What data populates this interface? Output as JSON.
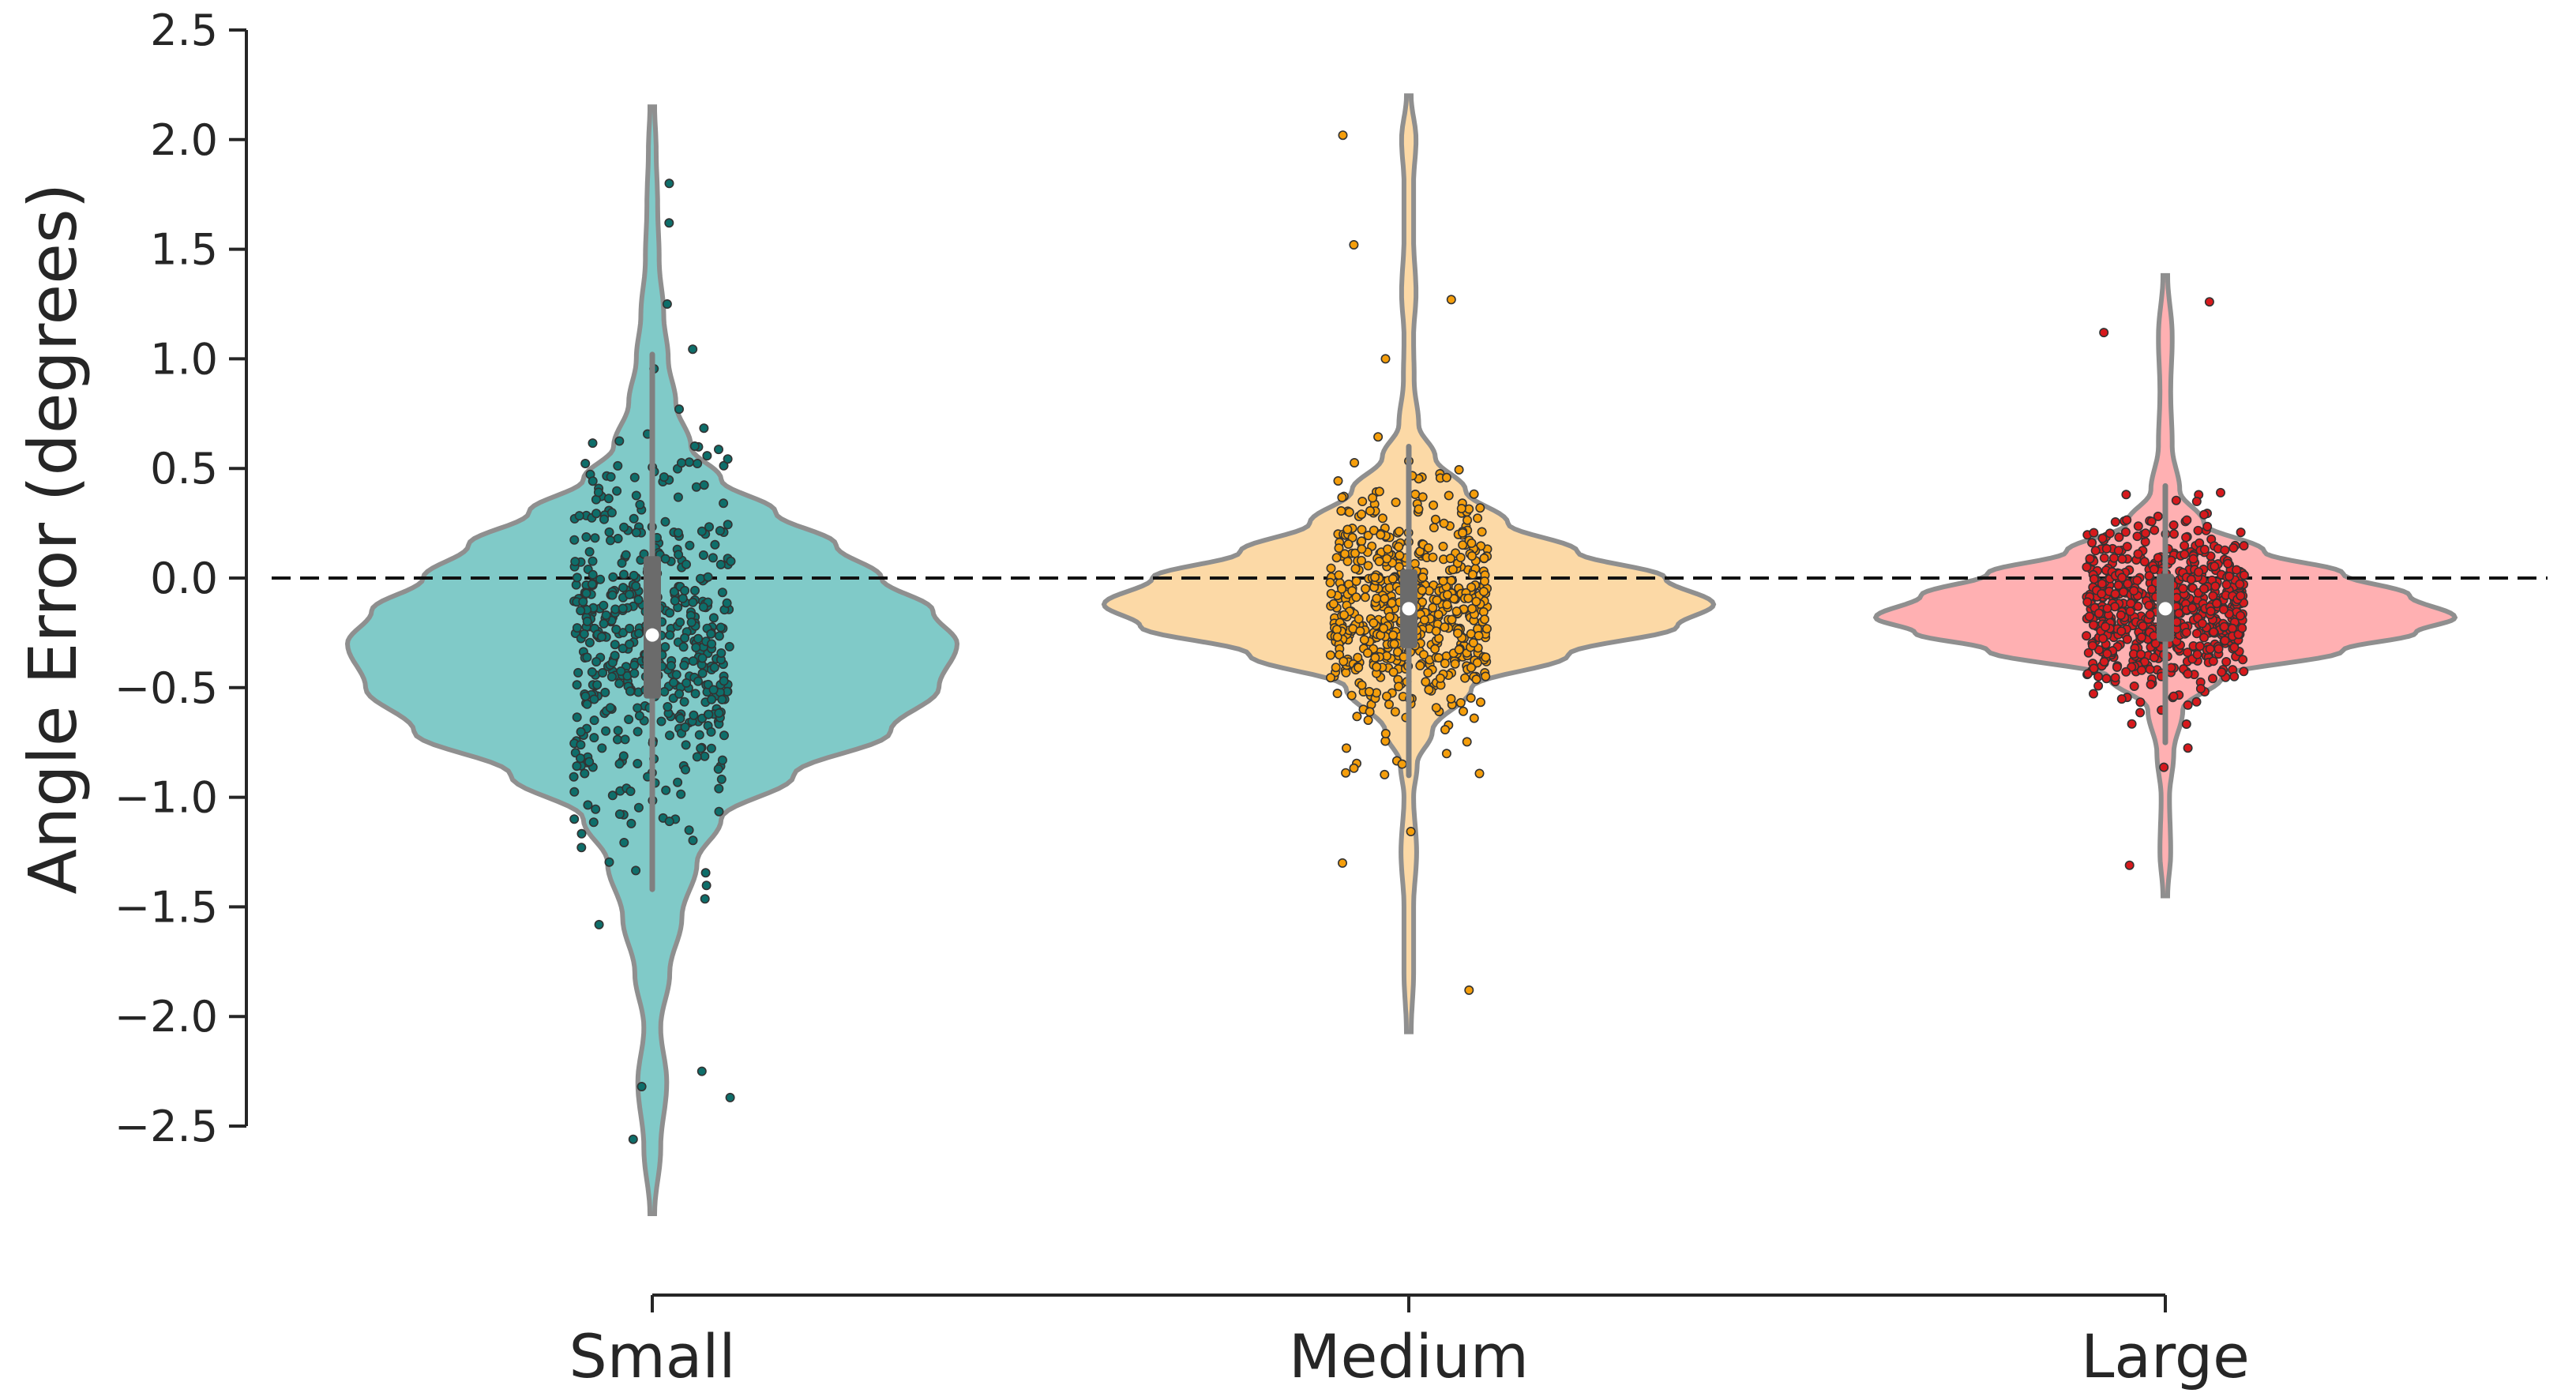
{
  "chart_data": {
    "type": "violin",
    "title": "",
    "xlabel": "",
    "ylabel": "Angle Error (degrees)",
    "ylim": [
      -2.5,
      2.5
    ],
    "yticks": [
      "2.5",
      "2.0",
      "1.5",
      "1.0",
      "0.5",
      "0.0",
      "−0.5",
      "−1.0",
      "−1.5",
      "−2.0",
      "−2.5"
    ],
    "ytick_values": [
      2.5,
      2.0,
      1.5,
      1.0,
      0.5,
      0.0,
      -0.5,
      -1.0,
      -1.5,
      -2.0,
      -2.5
    ],
    "reference_line": {
      "y": 0.0,
      "style": "dashed",
      "color": "#111111"
    },
    "categories": [
      "Small",
      "Medium",
      "Large"
    ],
    "series": [
      {
        "name": "Small",
        "fill": "#80CAC8",
        "point_color": "#0E6E6A",
        "median": -0.26,
        "q1": -0.55,
        "q3": 0.1,
        "whisker_low": -1.42,
        "whisker_high": 1.02,
        "min": -2.9,
        "max": 2.15,
        "n_points": 520,
        "point_sd": 0.42,
        "jitter": 0.2,
        "density_profile": [
          [
            -2.9,
            0.0
          ],
          [
            -2.6,
            0.02
          ],
          [
            -2.3,
            0.04
          ],
          [
            -2.05,
            0.02
          ],
          [
            -1.8,
            0.05
          ],
          [
            -1.55,
            0.09
          ],
          [
            -1.3,
            0.14
          ],
          [
            -1.1,
            0.22
          ],
          [
            -0.9,
            0.46
          ],
          [
            -0.7,
            0.78
          ],
          [
            -0.5,
            0.94
          ],
          [
            -0.3,
            1.0
          ],
          [
            -0.15,
            0.92
          ],
          [
            0.0,
            0.75
          ],
          [
            0.15,
            0.6
          ],
          [
            0.3,
            0.4
          ],
          [
            0.45,
            0.22
          ],
          [
            0.6,
            0.12
          ],
          [
            0.8,
            0.07
          ],
          [
            1.0,
            0.045
          ],
          [
            1.2,
            0.03
          ],
          [
            1.45,
            0.015
          ],
          [
            1.7,
            0.01
          ],
          [
            1.95,
            0.005
          ],
          [
            2.15,
            0.0
          ]
        ],
        "outliers": [
          -2.25,
          -2.37,
          -2.32,
          -2.56,
          1.8,
          1.62,
          1.25
        ]
      },
      {
        "name": "Medium",
        "fill": "#FCD9A6",
        "point_color": "#F59E0B",
        "median": -0.14,
        "q1": -0.32,
        "q3": 0.04,
        "whisker_low": -0.9,
        "whisker_high": 0.6,
        "min": -2.07,
        "max": 2.2,
        "n_points": 620,
        "point_sd": 0.26,
        "jitter": 0.2,
        "density_profile": [
          [
            -2.07,
            0.0
          ],
          [
            -1.8,
            0.008
          ],
          [
            -1.5,
            0.008
          ],
          [
            -1.25,
            0.018
          ],
          [
            -1.0,
            0.008
          ],
          [
            -0.85,
            0.02
          ],
          [
            -0.7,
            0.07
          ],
          [
            -0.5,
            0.2
          ],
          [
            -0.35,
            0.52
          ],
          [
            -0.22,
            0.88
          ],
          [
            -0.12,
            1.0
          ],
          [
            0.0,
            0.84
          ],
          [
            0.12,
            0.55
          ],
          [
            0.25,
            0.32
          ],
          [
            0.4,
            0.18
          ],
          [
            0.55,
            0.08
          ],
          [
            0.7,
            0.025
          ],
          [
            0.9,
            0.01
          ],
          [
            1.1,
            0.008
          ],
          [
            1.3,
            0.016
          ],
          [
            1.55,
            0.008
          ],
          [
            1.8,
            0.008
          ],
          [
            2.0,
            0.016
          ],
          [
            2.2,
            0.0
          ]
        ],
        "outliers": [
          2.02,
          1.52,
          1.27,
          1.0,
          -1.3,
          -1.88
        ]
      },
      {
        "name": "Large",
        "fill": "#FFB0B2",
        "point_color": "#D7191C",
        "median": -0.14,
        "q1": -0.29,
        "q3": 0.02,
        "whisker_low": -0.75,
        "whisker_high": 0.42,
        "min": -1.45,
        "max": 1.38,
        "n_points": 640,
        "point_sd": 0.2,
        "jitter": 0.2,
        "density_profile": [
          [
            -1.45,
            0.0
          ],
          [
            -1.25,
            0.01
          ],
          [
            -1.0,
            0.006
          ],
          [
            -0.8,
            0.02
          ],
          [
            -0.6,
            0.05
          ],
          [
            -0.45,
            0.18
          ],
          [
            -0.33,
            0.58
          ],
          [
            -0.25,
            0.82
          ],
          [
            -0.18,
            0.95
          ],
          [
            -0.08,
            0.8
          ],
          [
            0.02,
            0.58
          ],
          [
            0.12,
            0.32
          ],
          [
            0.25,
            0.12
          ],
          [
            0.4,
            0.04
          ],
          [
            0.6,
            0.015
          ],
          [
            0.85,
            0.01
          ],
          [
            1.1,
            0.015
          ],
          [
            1.38,
            0.0
          ]
        ],
        "outliers": [
          1.26,
          1.12,
          -1.31
        ]
      }
    ]
  }
}
